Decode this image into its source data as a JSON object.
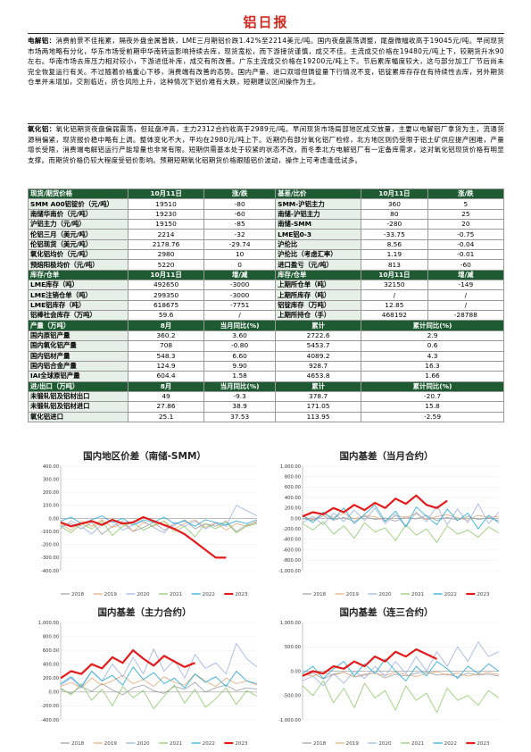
{
  "doc_title": "铝日报",
  "sections": [
    {
      "label": "电解铝：",
      "text": "消费前景不佳拖累，隔夜外盘金属普跌，LME三月期铝价跌1.42%至2214美元/吨。国内夜盘震荡调整，尾盘微幅收高于19045元/吨。早间现货市场两地略有分化，华东市场受前期申华南转运影响持续去库，现货宽松，而下游接货谨慎，成交不佳。主流成交价格在19480元/吨上下，较期货升水90左右。华南市场去库压力相对较小，下游进低补库，成交有所改善。广东主流成交价格在19200元/吨上下。节后累库幅度较大，这与部分加工厂节后尚未完全恢复运行有关。不过随着价格重心下移，消费端有改善的态势。国内产量、进口双增但铸锭量下行情况不变，铝锭累库存存在有持续性去库，另外期货仓单并未增加，交割临近，挤仓风险上升，这种情况下铝价难有大跌，短期建议区间操作为主。"
    },
    {
      "label": "氧化铝：",
      "text": "氧化铝期货夜盘偏弱震荡，但延盘冲高，主力2312合约收高于2989元/吨。早间现货市场局部地区成交放量，主要以电解铝厂拿货为主，流通货源稍偏紧，现货报价稳中略有上调。整体变化不大，平均在2980元/吨上下。近期仍有部分氧化铝厂检修，北方地区则仍受限于铝土矿供应提产困难，产量增长受限，消费端电解铝运行产能增量也非常有限。短期供需基本处于较紧的状态不改，而冬季北方电解铝厂有一定备库需求，这对氧化铝现货价格有明显支撑。而期货价格仍较大程度受铝价影响。预期短期氧化铝期货价格跟随铝价波动，操作上可考虑逢低试多。"
    }
  ],
  "table": {
    "block1_header": [
      "现货/期货价格",
      "10月11日",
      "涨/跌",
      "基差/比价",
      "10月11日",
      "涨/跌"
    ],
    "block1_rows": [
      [
        "SMM A00铝锭价（元/吨）",
        "19510",
        "-80",
        "SMM-沪铝主力",
        "360",
        "5"
      ],
      [
        "南储华南价（元/吨）",
        "19230",
        "-60",
        "南储-沪铝主力",
        "80",
        "25"
      ],
      [
        "沪铝主力（元/吨）",
        "19150",
        "-85",
        "南储-SMM",
        "-280",
        "20"
      ],
      [
        "伦铝三月（美元/吨）",
        "2214",
        "-32",
        "LME铝0-3",
        "-33.75",
        "-0.75"
      ],
      [
        "伦铝现货（美元/吨）",
        "2178.76",
        "-29.74",
        "沪伦比",
        "8.56",
        "-0.04"
      ],
      [
        "氧化铝均价（元/吨）",
        "2980",
        "10",
        "沪伦比（考虑汇率）",
        "1.19",
        "-0.01"
      ],
      [
        "预焙阳极均价（元/吨）",
        "5220",
        "0",
        "进口盈亏（元/吨）",
        "813",
        "-60"
      ]
    ],
    "block2_header": [
      "库存/仓单",
      "10月11日",
      "增/减",
      "库存/仓单",
      "10月11日",
      "增/减"
    ],
    "block2_rows": [
      [
        "LME库存（吨）",
        "492650",
        "-3000",
        "上期所仓单（吨）",
        "32150",
        "-149"
      ],
      [
        "LME注销仓单（吨）",
        "299350",
        "-3000",
        "上期所库存（吨）",
        "/",
        "/"
      ],
      [
        "LME铝库存（吨）",
        "618675",
        "-7751",
        "铝锭库存（万吨）",
        "12.85",
        "/"
      ],
      [
        "铝棒社会库存（万吨）",
        "59.6",
        "/",
        "上期所持仓（手）",
        "468192",
        "-28788"
      ]
    ],
    "block3_header": [
      "产量（万吨）",
      "8月",
      "当月同比(%)",
      "累计",
      "累计同比(%)"
    ],
    "block3_rows": [
      [
        "国内原铝产量",
        "360.2",
        "3.60",
        "2722.6",
        "2.9"
      ],
      [
        "国内氧化铝产量",
        "708",
        "-0.80",
        "5453.7",
        "0.6"
      ],
      [
        "国内铝材产量",
        "548.3",
        "6.60",
        "4089.2",
        "4.3"
      ],
      [
        "国内铝合金产量",
        "124.9",
        "9.90",
        "928.7",
        "16.3"
      ],
      [
        "IAI全球原铝产量",
        "604.4",
        "1.58",
        "4653.8",
        "1.66"
      ]
    ],
    "block4_header": [
      "进/出口（万吨）",
      "8月",
      "当月同比(%)",
      "累计",
      "累计同比(%)"
    ],
    "block4_rows": [
      [
        "未锻轧铝及铝材出口",
        "49",
        "-9.3",
        "378.7",
        "-20.7"
      ],
      [
        "未锻轧铝及铝材进口",
        "27.86",
        "38.9",
        "171.05",
        "15.8"
      ],
      [
        "氧化铝进口",
        "25.1",
        "37.53",
        "113.95",
        "-2.59"
      ]
    ]
  },
  "chart_data": [
    {
      "type": "line",
      "title": "国内地区价差（南储-SMM）",
      "ylim": [
        -400,
        400
      ],
      "yticks": [
        "400.00",
        "300.00",
        "200.00",
        "100.00",
        "0.00",
        "-100.00",
        "-200.00",
        "-300.00",
        "-400.00"
      ],
      "series": [
        {
          "name": "2018",
          "color": "#9aa0a6",
          "values": [
            -60,
            -40,
            -80,
            -30,
            -120,
            -60,
            -20,
            -100,
            -70,
            -30,
            -90,
            -50,
            -10,
            -80,
            -40,
            -60,
            -20,
            -100,
            -50,
            -30
          ]
        },
        {
          "name": "2019",
          "color": "#e3a978",
          "values": [
            -40,
            -90,
            -20,
            -60,
            -10,
            -70,
            -40,
            -100,
            -30,
            -60,
            -20,
            -80,
            -40,
            -10,
            -70,
            -30,
            -90,
            -40,
            -60,
            -20
          ]
        },
        {
          "name": "2020",
          "color": "#9bb0dc",
          "values": [
            -80,
            -20,
            -60,
            -120,
            -40,
            -10,
            -90,
            -50,
            -20,
            -70,
            -110,
            -30,
            -60,
            -20,
            -80,
            -40,
            -60,
            100,
            60,
            20
          ]
        },
        {
          "name": "2021",
          "color": "#8fc96b",
          "values": [
            -60,
            -110,
            -40,
            -80,
            -20,
            -130,
            -60,
            -30,
            -90,
            -50,
            -20,
            -100,
            -60,
            -140,
            -40,
            -80,
            -30,
            -110,
            -60,
            -40
          ]
        },
        {
          "name": "2022",
          "color": "#22a9d6",
          "values": [
            -20,
            10,
            -40,
            -10,
            20,
            -30,
            0,
            -50,
            -10,
            -30,
            10,
            -40,
            -20,
            -60,
            -10,
            -30,
            -50,
            -20,
            -40,
            -10
          ]
        },
        {
          "name": "2023",
          "color": "#e31b1b",
          "values": [
            -30,
            -60,
            -40,
            -20,
            -50,
            -10,
            -40,
            -30,
            10,
            -20,
            -50,
            -80,
            -120,
            -180,
            -240,
            -300,
            -300,
            null,
            null,
            null
          ]
        }
      ],
      "legend": "bottom"
    },
    {
      "type": "line",
      "title": "国内基差（当月合约）",
      "ylim": [
        -1000,
        1000
      ],
      "yticks": [
        "1,000.00",
        "800.00",
        "600.00",
        "400.00",
        "200.00",
        "0.00",
        "-200.00",
        "-400.00",
        "-600.00",
        "-800.00",
        "-1,000.00"
      ],
      "series": [
        {
          "name": "2018",
          "color": "#9aa0a6",
          "values": [
            0,
            -40,
            50,
            -30,
            20,
            -60,
            40,
            -20,
            10,
            -50,
            30,
            -10,
            60,
            -40,
            20,
            -30,
            40,
            -20,
            10,
            -40
          ]
        },
        {
          "name": "2019",
          "color": "#e3a978",
          "values": [
            40,
            -20,
            80,
            20,
            100,
            -10,
            60,
            30,
            -40,
            50,
            20,
            90,
            -20,
            40,
            70,
            10,
            -30,
            60,
            20,
            40
          ]
        },
        {
          "name": "2020",
          "color": "#9bb0dc",
          "values": [
            -80,
            40,
            -120,
            100,
            -60,
            160,
            -40,
            200,
            -100,
            80,
            -160,
            120,
            -60,
            240,
            -120,
            180,
            -80,
            280,
            -100,
            120
          ]
        },
        {
          "name": "2021",
          "color": "#8fc96b",
          "values": [
            -100,
            -220,
            -60,
            -300,
            -140,
            -380,
            -80,
            -260,
            -180,
            -420,
            -120,
            -320,
            -200,
            -460,
            -140,
            -300,
            -220,
            -360,
            -160,
            -280
          ]
        },
        {
          "name": "2022",
          "color": "#22a9d6",
          "values": [
            60,
            -80,
            120,
            -20,
            200,
            -100,
            80,
            260,
            -60,
            140,
            -160,
            220,
            40,
            -120,
            180,
            -40,
            100,
            -200,
            60,
            -80
          ]
        },
        {
          "name": "2023",
          "color": "#e31b1b",
          "values": [
            40,
            120,
            80,
            200,
            120,
            260,
            160,
            300,
            200,
            380,
            280,
            440,
            260,
            200,
            340,
            null,
            null,
            null,
            null,
            null
          ]
        }
      ],
      "legend": "bottom"
    },
    {
      "type": "line",
      "title": "国内基差（主力合约）",
      "ylim": [
        -400,
        1000
      ],
      "yticks": [
        "1,000.00",
        "800.00",
        "600.00",
        "400.00",
        "200.00",
        "0.00",
        "-200.00",
        "-400.00"
      ],
      "series": [
        {
          "name": "2018",
          "color": "#9aa0a6",
          "values": [
            40,
            -20,
            80,
            10,
            120,
            30,
            -40,
            60,
            100,
            20,
            -20,
            80,
            40,
            140,
            0,
            60,
            100,
            20,
            60,
            40
          ]
        },
        {
          "name": "2019",
          "color": "#e3a978",
          "values": [
            80,
            140,
            60,
            200,
            100,
            160,
            240,
            120,
            180,
            80,
            220,
            140,
            100,
            260,
            160,
            80,
            200,
            120,
            160,
            100
          ]
        },
        {
          "name": "2020",
          "color": "#9bb0dc",
          "values": [
            100,
            200,
            60,
            300,
            160,
            400,
            220,
            500,
            260,
            620,
            300,
            460,
            200,
            540,
            340,
            420,
            260,
            700,
            480,
            360
          ]
        },
        {
          "name": "2021",
          "color": "#8fc96b",
          "values": [
            60,
            -40,
            120,
            -120,
            40,
            -200,
            80,
            -80,
            20,
            -240,
            -60,
            100,
            -160,
            40,
            -220,
            -100,
            60,
            -180,
            20,
            -60
          ]
        },
        {
          "name": "2022",
          "color": "#22a9d6",
          "values": [
            120,
            220,
            80,
            300,
            160,
            240,
            100,
            360,
            180,
            280,
            120,
            200,
            60,
            260,
            140,
            220,
            80,
            300,
            160,
            120
          ]
        },
        {
          "name": "2023",
          "color": "#e31b1b",
          "values": [
            200,
            300,
            260,
            400,
            340,
            500,
            420,
            600,
            480,
            380,
            520,
            440,
            360,
            420,
            null,
            null,
            null,
            null,
            null,
            null
          ]
        }
      ],
      "legend": "bottom"
    },
    {
      "type": "line",
      "title": "国内基差（连三合约）",
      "ylim": [
        -1000,
        1000
      ],
      "yticks": [
        "1,000.00",
        "500.00",
        "0.00",
        "-500.00",
        "-1,000.00"
      ],
      "series": [
        {
          "name": "2018",
          "color": "#9aa0a6",
          "values": [
            -100,
            -40,
            -160,
            -60,
            -20,
            -120,
            -80,
            -30,
            -140,
            -60,
            -100,
            -40,
            -20,
            -80,
            -60,
            -120,
            -40,
            -80,
            -60,
            -100
          ]
        },
        {
          "name": "2019",
          "color": "#e3a978",
          "values": [
            -60,
            -100,
            -30,
            -80,
            -20,
            -120,
            -60,
            -40,
            -90,
            -20,
            -70,
            -110,
            -50,
            -10,
            -80,
            -40,
            -100,
            -60,
            -30,
            -70
          ]
        },
        {
          "name": "2020",
          "color": "#9bb0dc",
          "values": [
            -200,
            -100,
            -300,
            -50,
            -250,
            0,
            -150,
            100,
            -100,
            200,
            -50,
            300,
            0,
            400,
            100,
            500,
            200,
            600,
            300,
            400
          ]
        },
        {
          "name": "2021",
          "color": "#8fc96b",
          "values": [
            -300,
            -500,
            -200,
            -650,
            -350,
            -750,
            -250,
            -550,
            -400,
            -800,
            -300,
            -600,
            -450,
            -850,
            -350,
            -600,
            -500,
            -700,
            -400,
            -550
          ]
        },
        {
          "name": "2022",
          "color": "#22a9d6",
          "values": [
            -50,
            100,
            -150,
            50,
            200,
            -100,
            150,
            -50,
            250,
            0,
            -200,
            100,
            -100,
            200,
            50,
            -150,
            100,
            -50,
            150,
            0
          ]
        },
        {
          "name": "2023",
          "color": "#e31b1b",
          "values": [
            -100,
            0,
            -50,
            100,
            50,
            200,
            100,
            300,
            200,
            400,
            300,
            450,
            350,
            250,
            null,
            null,
            null,
            null,
            null,
            null
          ]
        }
      ],
      "legend": "bottom"
    }
  ],
  "colors": {
    "title_red": "#d02a23",
    "header_green": "#1e5b32",
    "label_bg": "#e7f0e6"
  }
}
